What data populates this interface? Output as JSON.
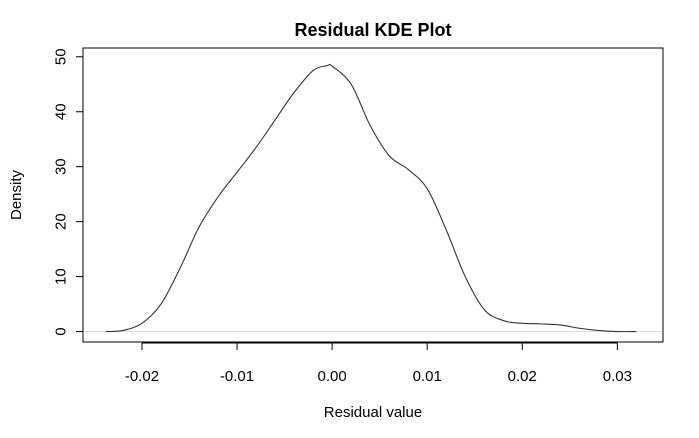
{
  "chart_data": {
    "type": "line",
    "title": "Residual KDE Plot",
    "xlabel": "Residual value",
    "ylabel": "Density",
    "xlim": [
      -0.0262,
      0.0348
    ],
    "ylim": [
      -1.9,
      51.6
    ],
    "x_ticks": [
      -0.02,
      -0.01,
      0.0,
      0.01,
      0.02,
      0.03
    ],
    "x_tick_labels": [
      "-0.02",
      "-0.01",
      "0.00",
      "0.01",
      "0.02",
      "0.03"
    ],
    "y_ticks": [
      0,
      10,
      20,
      30,
      40,
      50
    ],
    "y_tick_labels": [
      "0",
      "10",
      "20",
      "30",
      "40",
      "50"
    ],
    "grid": false,
    "line_color": "#333333",
    "baseline_color": "#dddddd",
    "series": [
      {
        "x": [
          -0.0238,
          -0.022,
          -0.02,
          -0.018,
          -0.016,
          -0.014,
          -0.012,
          -0.01,
          -0.008,
          -0.006,
          -0.004,
          -0.002,
          -0.0005,
          0.0,
          0.002,
          0.004,
          0.006,
          0.008,
          0.01,
          0.012,
          0.014,
          0.016,
          0.018,
          0.02,
          0.022,
          0.024,
          0.026,
          0.028,
          0.03,
          0.032
        ],
        "values": [
          0.0,
          0.2,
          1.5,
          5.0,
          11.5,
          19.0,
          24.5,
          29.0,
          33.5,
          38.5,
          43.5,
          47.5,
          48.4,
          48.3,
          45.0,
          37.5,
          32.0,
          29.5,
          26.0,
          18.5,
          10.0,
          4.0,
          2.0,
          1.5,
          1.4,
          1.2,
          0.6,
          0.2,
          0.0,
          0.0
        ]
      }
    ]
  }
}
